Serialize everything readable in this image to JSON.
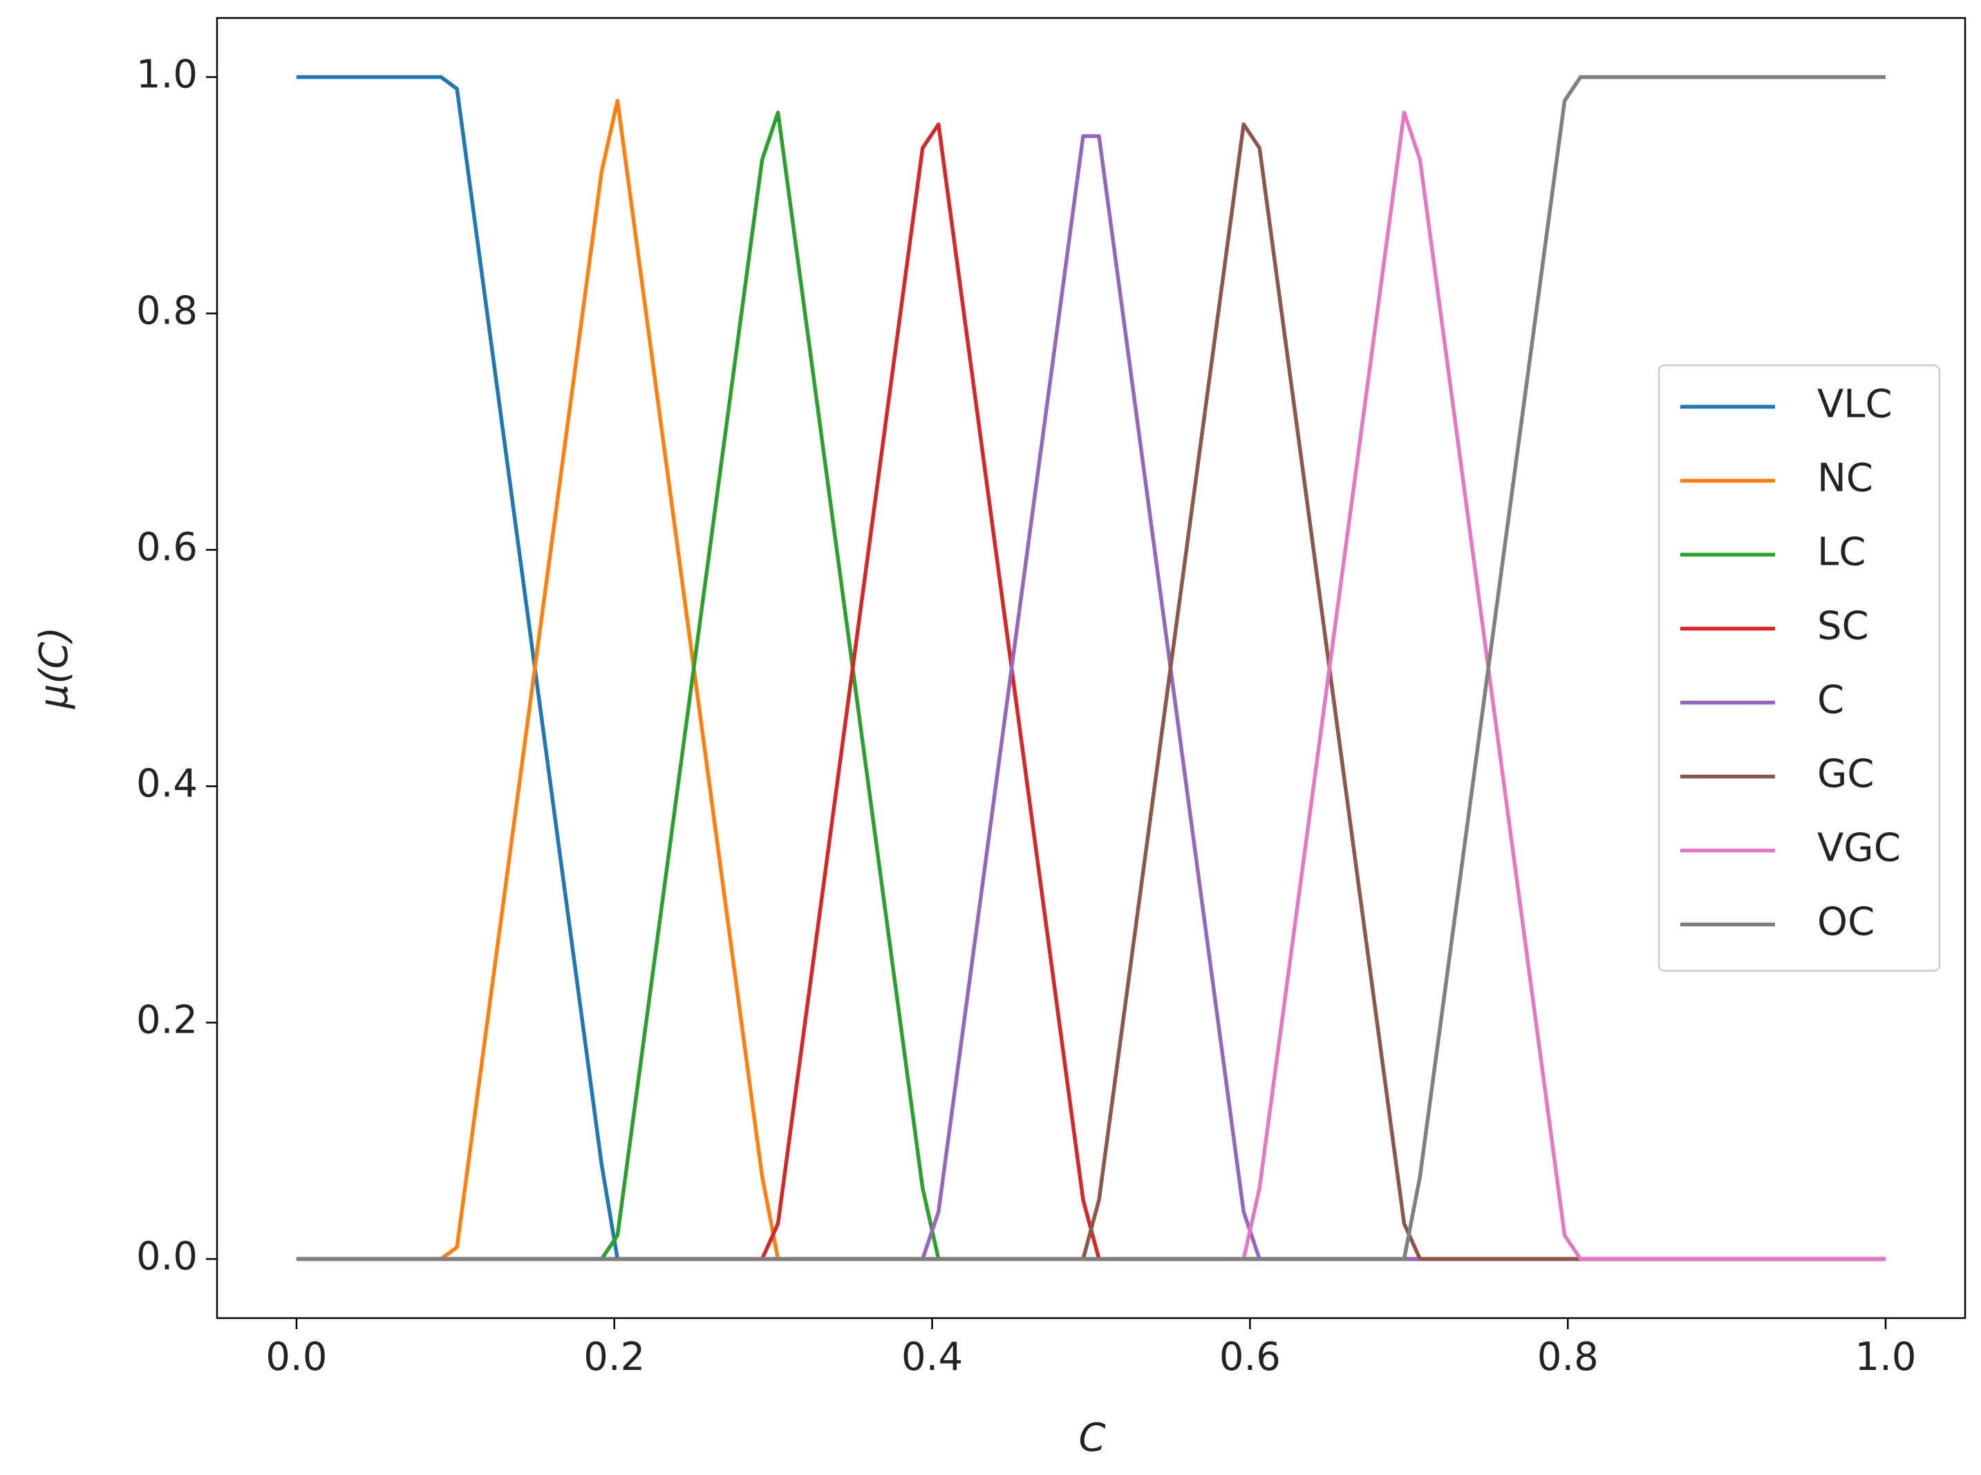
{
  "chart_data": {
    "type": "line",
    "xlabel": "C",
    "ylabel": "μ(C)",
    "xlim": [
      -0.05,
      1.05
    ],
    "ylim": [
      -0.05,
      1.05
    ],
    "xticks": [
      {
        "value": 0,
        "label": "0.0"
      },
      0.2,
      0.4,
      0.6,
      0.8,
      {
        "value": 1,
        "label": "1.0"
      }
    ],
    "yticks": [
      {
        "value": 0,
        "label": "0.0"
      },
      0.2,
      0.4,
      0.6,
      0.8,
      {
        "value": 1,
        "label": "1.0"
      }
    ],
    "legend": "right",
    "series": [
      {
        "name": "VLC",
        "color": "#1f77b4",
        "x": [
          0,
          0.091,
          0.101,
          0.192,
          0.202,
          1.0
        ],
        "values": [
          1,
          1,
          0.99,
          0.08,
          0,
          0
        ]
      },
      {
        "name": "NC",
        "color": "#ff7f0e",
        "x": [
          0,
          0.091,
          0.101,
          0.192,
          0.202,
          0.293,
          0.303,
          1.0
        ],
        "values": [
          0,
          0,
          0.01,
          0.92,
          0.98,
          0.07,
          0,
          0
        ]
      },
      {
        "name": "LC",
        "color": "#2ca02c",
        "x": [
          0,
          0.192,
          0.202,
          0.293,
          0.303,
          0.394,
          0.404,
          1.0
        ],
        "values": [
          0,
          0,
          0.02,
          0.93,
          0.97,
          0.06,
          0,
          0
        ]
      },
      {
        "name": "SC",
        "color": "#d62728",
        "x": [
          0,
          0.293,
          0.303,
          0.394,
          0.404,
          0.495,
          0.505,
          1.0
        ],
        "values": [
          0,
          0,
          0.03,
          0.94,
          0.96,
          0.05,
          0,
          0
        ]
      },
      {
        "name": "C",
        "color": "#9467bd",
        "x": [
          0,
          0.394,
          0.404,
          0.495,
          0.505,
          0.596,
          0.606,
          1.0
        ],
        "values": [
          0,
          0,
          0.04,
          0.95,
          0.95,
          0.04,
          0,
          0
        ]
      },
      {
        "name": "GC",
        "color": "#8c564b",
        "x": [
          0,
          0.495,
          0.505,
          0.596,
          0.606,
          0.697,
          0.707,
          1.0
        ],
        "values": [
          0,
          0,
          0.05,
          0.96,
          0.94,
          0.03,
          0,
          0
        ]
      },
      {
        "name": "VGC",
        "color": "#e377c2",
        "x": [
          0,
          0.596,
          0.606,
          0.697,
          0.707,
          0.798,
          0.808,
          1.0
        ],
        "values": [
          0,
          0,
          0.06,
          0.97,
          0.93,
          0.02,
          0,
          0
        ]
      },
      {
        "name": "OC",
        "color": "#7f7f7f",
        "x": [
          0,
          0.697,
          0.707,
          0.798,
          0.808,
          1.0
        ],
        "values": [
          0,
          0,
          0.07,
          0.98,
          1,
          1
        ]
      }
    ]
  }
}
